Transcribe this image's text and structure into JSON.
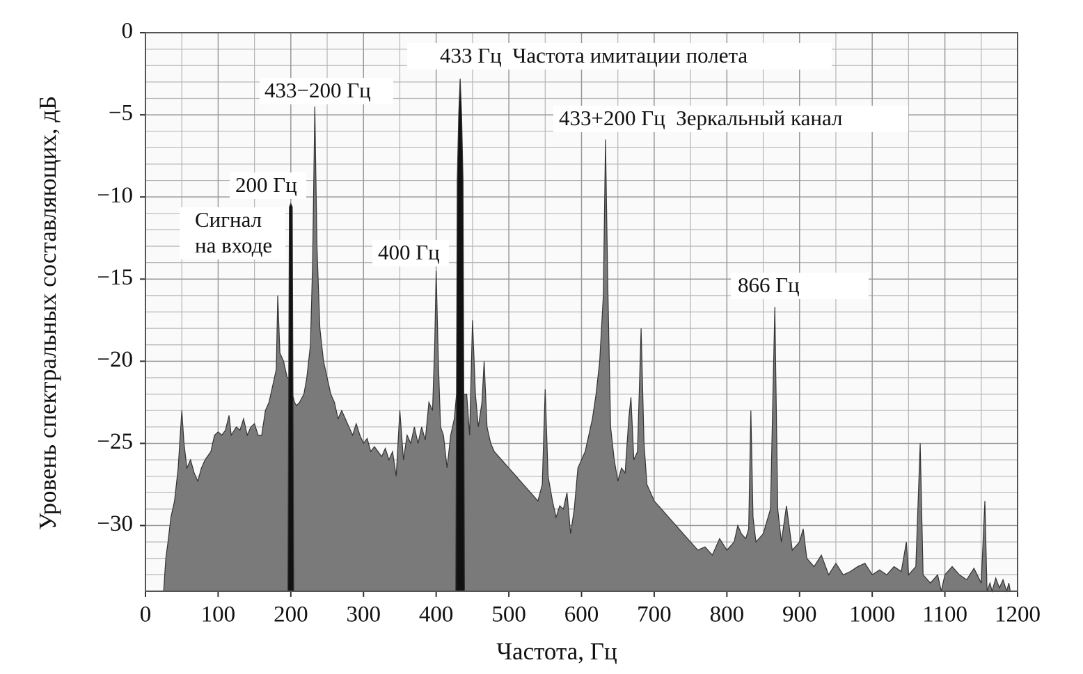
{
  "chart_data": {
    "type": "area",
    "xlabel": "Частота, Гц",
    "ylabel": "Уровень спектральных составляющих, дБ",
    "xlim": [
      0,
      1200
    ],
    "ylim": [
      -34,
      0
    ],
    "xticks": [
      0,
      100,
      200,
      300,
      400,
      500,
      600,
      700,
      800,
      900,
      1000,
      1100,
      1200
    ],
    "yticks": [
      0,
      {
        "value": -5,
        "label": "−5"
      },
      {
        "value": -10,
        "label": "−10"
      },
      {
        "value": -15,
        "label": "−15"
      },
      {
        "value": -20,
        "label": "−20"
      },
      {
        "value": -25,
        "label": "−25"
      },
      {
        "value": -30,
        "label": "−30"
      }
    ],
    "grid": true,
    "x_minor_ticks": [
      50,
      150,
      250,
      350,
      450,
      550,
      650,
      750,
      850,
      950,
      1050,
      1150
    ],
    "y_minor_ticks": [
      -1,
      -2,
      -3,
      -4,
      -6,
      -7,
      -8,
      -9,
      -11,
      -12,
      -13,
      -14,
      -16,
      -17,
      -18,
      -19,
      -21,
      -22,
      -23,
      -24,
      -26,
      -27,
      -28,
      -29,
      -31,
      -32,
      -33
    ],
    "annotations": [
      "433 Гц  Частота имитации полета",
      "433−200 Гц",
      "433+200 Гц  Зеркальный канал",
      "200 Гц",
      "Сигнал",
      "на входе",
      "400 Гц",
      "866 Гц"
    ],
    "series": [
      {
        "color": "#7a7a7a",
        "x": [
          25,
          28,
          31,
          35,
          40,
          45,
          50,
          53,
          57,
          62,
          67,
          72,
          77,
          82,
          90,
          95,
          100,
          105,
          110,
          115,
          118,
          125,
          130,
          135,
          140,
          145,
          150,
          155,
          160,
          165,
          170,
          175,
          180,
          182,
          185,
          190,
          195,
          197,
          205,
          208,
          212,
          218,
          222,
          227,
          230,
          233,
          236,
          240,
          245,
          250,
          255,
          260,
          265,
          270,
          275,
          280,
          285,
          290,
          295,
          300,
          305,
          310,
          315,
          320,
          325,
          330,
          335,
          340,
          345,
          350,
          355,
          360,
          365,
          370,
          375,
          380,
          385,
          390,
          395,
          398,
          400,
          403,
          406,
          410,
          415,
          420,
          425,
          428,
          438,
          442,
          446,
          450,
          454,
          458,
          463,
          466,
          470,
          475,
          480,
          490,
          500,
          510,
          520,
          530,
          540,
          546,
          550,
          554,
          560,
          565,
          570,
          575,
          580,
          585,
          590,
          595,
          600,
          605,
          610,
          615,
          620,
          625,
          630,
          633,
          636,
          640,
          645,
          650,
          655,
          660,
          665,
          668,
          672,
          677,
          682,
          686,
          690,
          700,
          710,
          720,
          730,
          740,
          750,
          760,
          770,
          780,
          790,
          800,
          810,
          815,
          820,
          826,
          830,
          833,
          836,
          840,
          850,
          860,
          866,
          870,
          875,
          882,
          890,
          900,
          905,
          910,
          920,
          930,
          940,
          950,
          960,
          970,
          980,
          990,
          1000,
          1010,
          1020,
          1030,
          1040,
          1047,
          1050,
          1060,
          1066,
          1070,
          1080,
          1090,
          1095,
          1100,
          1110,
          1120,
          1130,
          1140,
          1150,
          1155,
          1158,
          1162,
          1165,
          1170,
          1175,
          1180,
          1185,
          1188,
          1190
        ],
        "values": [
          -34,
          -32,
          -31,
          -29.5,
          -28.5,
          -26.5,
          -23,
          -25,
          -26.5,
          -26,
          -26.8,
          -27.3,
          -26.5,
          -26,
          -25.5,
          -24.5,
          -24.3,
          -24.5,
          -24.2,
          -23.3,
          -24.5,
          -24,
          -24.2,
          -23.5,
          -24.5,
          -24,
          -23.8,
          -24.5,
          -24.5,
          -23,
          -22.5,
          -21.5,
          -20.5,
          -16,
          -19.5,
          -20,
          -21,
          -21,
          -22.5,
          -22.7,
          -22.5,
          -22,
          -21,
          -19,
          -14,
          -4.5,
          -13,
          -18,
          -20,
          -21,
          -22,
          -22.5,
          -23.5,
          -23,
          -23.5,
          -24,
          -24.5,
          -23.8,
          -24.5,
          -25,
          -24.7,
          -25.5,
          -25.2,
          -25.5,
          -25.8,
          -25.3,
          -26,
          -25.5,
          -27,
          -23,
          -26,
          -24.5,
          -25,
          -24,
          -25,
          -24,
          -24.8,
          -22.5,
          -23,
          -19,
          -14.5,
          -20,
          -24,
          -24.5,
          -26.5,
          -24.5,
          -23.5,
          -22,
          -22,
          -22,
          -24.5,
          -17.5,
          -22,
          -24,
          -22.5,
          -20,
          -24,
          -25,
          -25.5,
          -26,
          -26.5,
          -27,
          -27.5,
          -28,
          -28.5,
          -27.5,
          -21.7,
          -27,
          -28.5,
          -29.5,
          -28.8,
          -29,
          -28,
          -30.5,
          -29,
          -26.5,
          -26,
          -25.5,
          -24.5,
          -23.5,
          -22,
          -20,
          -16,
          -6.5,
          -15,
          -24,
          -26,
          -27.3,
          -26.5,
          -26.8,
          -23.5,
          -22.2,
          -26,
          -25.5,
          -18,
          -25,
          -27.5,
          -28.5,
          -29,
          -29.5,
          -30,
          -30.5,
          -31,
          -31.5,
          -31.3,
          -31.8,
          -30.8,
          -31.5,
          -31,
          -30,
          -30.5,
          -30.8,
          -30.2,
          -23,
          -29.5,
          -31,
          -30.5,
          -29,
          -16.7,
          -29,
          -31,
          -28.8,
          -31.5,
          -31,
          -30.2,
          -32,
          -32.5,
          -31.8,
          -33,
          -32.3,
          -33,
          -32.8,
          -32.5,
          -32.3,
          -33,
          -32.7,
          -33,
          -32.5,
          -32.8,
          -31,
          -33,
          -32.5,
          -25,
          -33,
          -33.5,
          -33,
          -34,
          -33,
          -32.5,
          -33,
          -33.3,
          -32.6,
          -33.5,
          -28.5,
          -34,
          -33.5,
          -34,
          -33.2,
          -33.8,
          -33.3,
          -34,
          -33.5,
          -34
        ]
      },
      {
        "color": "#111111",
        "x": [
          196,
          198,
          200,
          202,
          204
        ],
        "values": [
          -34,
          -10.6,
          -10.4,
          -10.6,
          -34
        ]
      },
      {
        "color": "#111111",
        "x": [
          427,
          429,
          431,
          433,
          435,
          437,
          439
        ],
        "values": [
          -34,
          -9,
          -5,
          -2.8,
          -5,
          -9,
          -34
        ]
      }
    ]
  }
}
